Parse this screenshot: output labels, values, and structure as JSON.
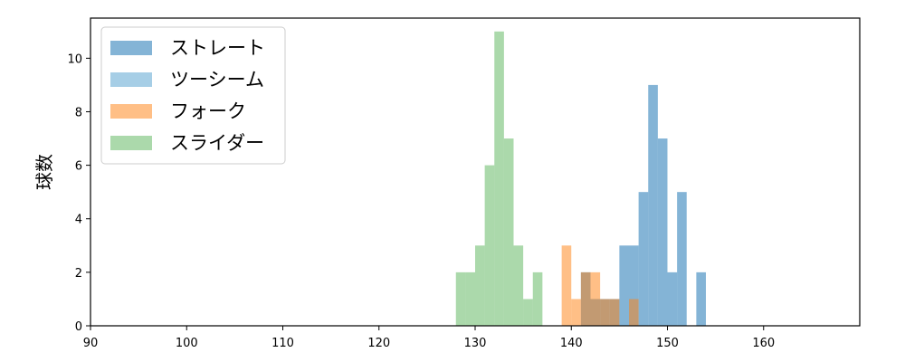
{
  "chart_data": {
    "type": "histogram",
    "title": "",
    "xlabel": "",
    "ylabel": "球数",
    "xlim": [
      90,
      170
    ],
    "ylim": [
      0,
      11.5
    ],
    "xticks": [
      90,
      100,
      110,
      120,
      130,
      140,
      150,
      160
    ],
    "yticks": [
      0,
      2,
      4,
      6,
      8,
      10
    ],
    "bin_width": 1,
    "grid": false,
    "legend": "top-left",
    "series": [
      {
        "name": "ストレート",
        "color": "#1f77b4",
        "opacity": 0.55,
        "bins": [
          {
            "x": 141,
            "count": 2
          },
          {
            "x": 142,
            "count": 1
          },
          {
            "x": 143,
            "count": 1
          },
          {
            "x": 144,
            "count": 1
          },
          {
            "x": 145,
            "count": 3
          },
          {
            "x": 146,
            "count": 3
          },
          {
            "x": 147,
            "count": 5
          },
          {
            "x": 148,
            "count": 9
          },
          {
            "x": 149,
            "count": 7
          },
          {
            "x": 150,
            "count": 2
          },
          {
            "x": 151,
            "count": 5
          },
          {
            "x": 153,
            "count": 2
          }
        ]
      },
      {
        "name": "ツーシーム",
        "color": "#6baed6",
        "opacity": 0.6,
        "bins": []
      },
      {
        "name": "フォーク",
        "color": "#ff7f0e",
        "opacity": 0.5,
        "bins": [
          {
            "x": 139,
            "count": 3
          },
          {
            "x": 140,
            "count": 1
          },
          {
            "x": 141,
            "count": 2
          },
          {
            "x": 142,
            "count": 2
          },
          {
            "x": 143,
            "count": 1
          },
          {
            "x": 144,
            "count": 1
          },
          {
            "x": 146,
            "count": 1
          }
        ]
      },
      {
        "name": "スライダー",
        "color": "#2ca02c",
        "opacity": 0.4,
        "bins": [
          {
            "x": 128,
            "count": 2
          },
          {
            "x": 129,
            "count": 2
          },
          {
            "x": 130,
            "count": 3
          },
          {
            "x": 131,
            "count": 6
          },
          {
            "x": 132,
            "count": 11
          },
          {
            "x": 133,
            "count": 7
          },
          {
            "x": 134,
            "count": 3
          },
          {
            "x": 135,
            "count": 1
          },
          {
            "x": 136,
            "count": 2
          }
        ]
      }
    ]
  }
}
